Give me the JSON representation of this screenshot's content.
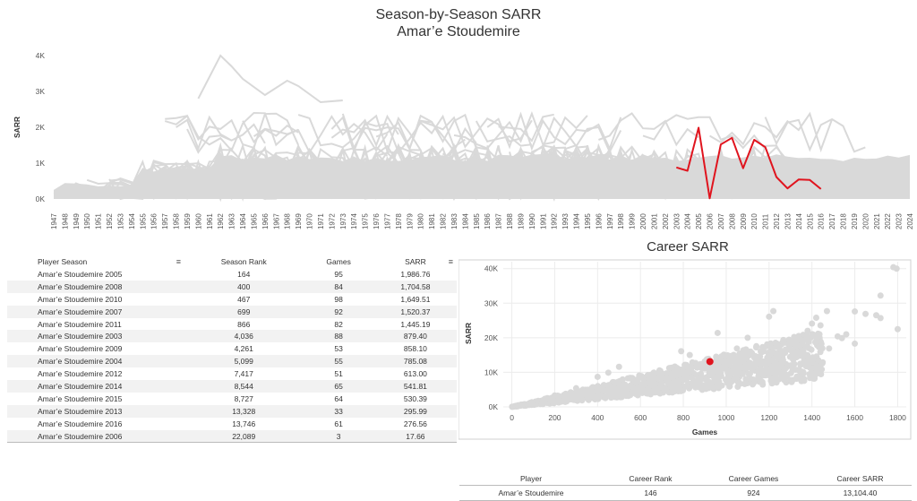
{
  "header": {
    "title": "Season-by-Season SARR",
    "subtitle": "Amar’e Stoudemire"
  },
  "chart_data": [
    {
      "type": "line",
      "ylabel": "SARR",
      "x": [
        1947,
        1948,
        1949,
        1950,
        1951,
        1952,
        1953,
        1954,
        1955,
        1956,
        1957,
        1958,
        1959,
        1960,
        1961,
        1962,
        1963,
        1964,
        1965,
        1966,
        1967,
        1968,
        1969,
        1970,
        1971,
        1972,
        1973,
        1974,
        1975,
        1976,
        1977,
        1978,
        1979,
        1980,
        1981,
        1982,
        1983,
        1984,
        1985,
        1986,
        1987,
        1988,
        1989,
        1990,
        1991,
        1992,
        1993,
        1994,
        1995,
        1996,
        1997,
        1998,
        1999,
        2000,
        2001,
        2002,
        2003,
        2004,
        2005,
        2006,
        2007,
        2008,
        2009,
        2010,
        2011,
        2012,
        2013,
        2014,
        2015,
        2016,
        2017,
        2018,
        2019,
        2020,
        2021,
        2022,
        2023,
        2024
      ],
      "yticks": [
        "0K",
        "1K",
        "2K",
        "3K",
        "4K"
      ],
      "ylim": [
        0,
        4000
      ],
      "highlight": {
        "name": "Amar’e Stoudemire",
        "color": "#e0141e",
        "x": [
          2003,
          2004,
          2005,
          2006,
          2007,
          2008,
          2009,
          2010,
          2011,
          2012,
          2013,
          2014,
          2015,
          2016
        ],
        "y": [
          879.4,
          785.08,
          1986.76,
          17.66,
          1520.37,
          1704.58,
          858.1,
          1649.51,
          1445.19,
          613.0,
          295.99,
          541.81,
          530.39,
          276.56
        ]
      },
      "background_color": "#d9d9d9",
      "grid": false
    },
    {
      "type": "scatter",
      "title": "Career SARR",
      "xlabel": "Games",
      "ylabel": "SARR",
      "xticks": [
        0,
        200,
        400,
        600,
        800,
        1000,
        1200,
        1400,
        1600,
        1800
      ],
      "yticks": [
        "0K",
        "10K",
        "20K",
        "30K",
        "40K"
      ],
      "xlim": [
        -40,
        1840
      ],
      "ylim": [
        0,
        42000
      ],
      "highlight": {
        "name": "Amar’e Stoudemire",
        "x": 924,
        "y": 13104.4,
        "color": "#e0141e"
      },
      "outliers": [
        [
          1780,
          40400
        ],
        [
          1795,
          40000
        ],
        [
          1800,
          22500
        ],
        [
          1720,
          32200
        ],
        [
          1650,
          26900
        ],
        [
          1700,
          26500
        ],
        [
          1720,
          25700
        ],
        [
          1600,
          27600
        ],
        [
          1560,
          21000
        ],
        [
          1520,
          20400
        ],
        [
          1540,
          19900
        ],
        [
          1470,
          27700
        ],
        [
          1440,
          23600
        ],
        [
          1400,
          24100
        ],
        [
          1420,
          25800
        ],
        [
          1380,
          22000
        ],
        [
          1360,
          19100
        ],
        [
          1200,
          26100
        ],
        [
          1220,
          27700
        ],
        [
          1100,
          20000
        ],
        [
          1050,
          16900
        ],
        [
          960,
          21400
        ],
        [
          1600,
          18300
        ],
        [
          1480,
          16900
        ],
        [
          1360,
          16000
        ],
        [
          1320,
          18000
        ],
        [
          1300,
          12000
        ],
        [
          1230,
          9200
        ],
        [
          1210,
          10000
        ],
        [
          1430,
          13500
        ],
        [
          1450,
          12900
        ],
        [
          1430,
          10200
        ],
        [
          1440,
          12000
        ],
        [
          1380,
          14700
        ],
        [
          830,
          15000
        ],
        [
          790,
          16100
        ],
        [
          500,
          11600
        ],
        [
          450,
          9900
        ],
        [
          400,
          8700
        ],
        [
          300,
          5400
        ],
        [
          200,
          3300
        ]
      ],
      "grid": true
    }
  ],
  "season_table": {
    "headers": [
      "Player Season",
      "Season Rank",
      "Games",
      "SARR"
    ],
    "rows": [
      [
        "Amar’e Stoudemire 2005",
        "164",
        "95",
        "1,986.76"
      ],
      [
        "Amar’e Stoudemire 2008",
        "400",
        "84",
        "1,704.58"
      ],
      [
        "Amar’e Stoudemire 2010",
        "467",
        "98",
        "1,649.51"
      ],
      [
        "Amar’e Stoudemire 2007",
        "699",
        "92",
        "1,520.37"
      ],
      [
        "Amar’e Stoudemire 2011",
        "866",
        "82",
        "1,445.19"
      ],
      [
        "Amar’e Stoudemire 2003",
        "4,036",
        "88",
        "879.40"
      ],
      [
        "Amar’e Stoudemire 2009",
        "4,261",
        "53",
        "858.10"
      ],
      [
        "Amar’e Stoudemire 2004",
        "5,099",
        "55",
        "785.08"
      ],
      [
        "Amar’e Stoudemire 2012",
        "7,417",
        "51",
        "613.00"
      ],
      [
        "Amar’e Stoudemire 2014",
        "8,544",
        "65",
        "541.81"
      ],
      [
        "Amar’e Stoudemire 2015",
        "8,727",
        "64",
        "530.39"
      ],
      [
        "Amar’e Stoudemire 2013",
        "13,328",
        "33",
        "295.99"
      ],
      [
        "Amar’e Stoudemire 2016",
        "13,746",
        "61",
        "276.56"
      ],
      [
        "Amar’e Stoudemire 2006",
        "22,089",
        "3",
        "17.66"
      ]
    ]
  },
  "career_table": {
    "headers": [
      "Player",
      "Career Rank",
      "Career Games",
      "Career SARR"
    ],
    "row": [
      "Amar’e Stoudemire",
      "146",
      "924",
      "13,104.40"
    ]
  }
}
